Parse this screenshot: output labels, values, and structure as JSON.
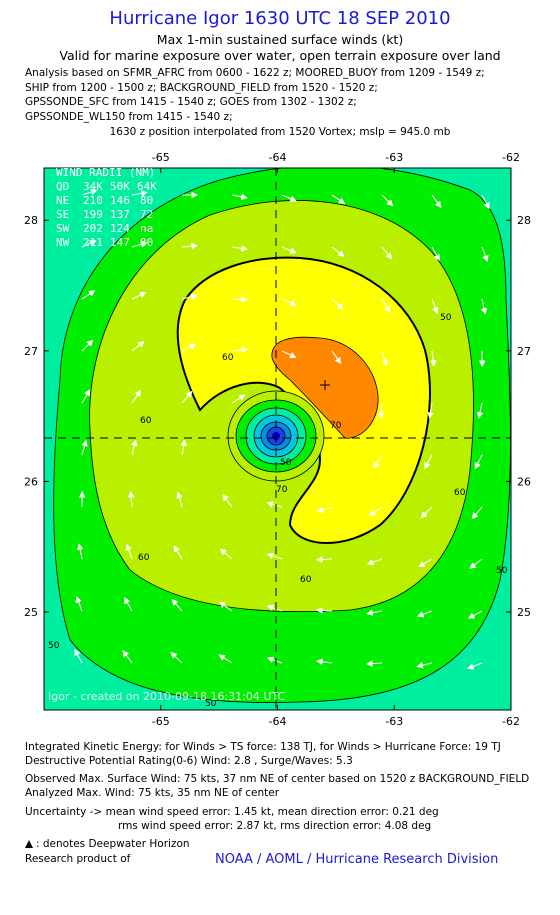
{
  "title": "Hurricane Igor 1630 UTC 18 SEP 2010",
  "subtitle": "Max 1-min sustained surface winds (kt)",
  "validity": "Valid for marine exposure over water, open terrain exposure over land",
  "analysis_lines": [
    "Analysis based on SFMR_AFRC from 0600 - 1622 z; MOORED_BUOY from 1209 - 1549 z;",
    "SHIP from 1200 - 1500 z; BACKGROUND_FIELD from 1520 - 1520 z;",
    "GPSSONDE_SFC from 1415 - 1540 z; GOES from 1302 - 1302 z;",
    "GPSSONDE_WL150 from 1415 - 1540 z;"
  ],
  "position_note": "1630 z position interpolated from 1520 Vortex; mslp = 945.0 mb",
  "map": {
    "lon_range": [
      -66.0,
      -62.0
    ],
    "lat_range": [
      24.25,
      28.4
    ],
    "lon_ticks": [
      "-65",
      "-64",
      "-63",
      "-62"
    ],
    "lat_ticks": [
      "28",
      "27",
      "26",
      "25"
    ],
    "center": {
      "lon": -63.95,
      "lat": 26.3
    },
    "max_wind_marker": {
      "lon": -63.47,
      "lat": 26.7
    },
    "contour_labels": [
      "50",
      "60",
      "60",
      "60",
      "60",
      "70",
      "50",
      "50",
      "60",
      "50",
      "70",
      "50"
    ],
    "colors": {
      "kt40": "#00eea0",
      "kt50": "#00ee00",
      "kt60": "#b8f000",
      "kt64": "#ffff00",
      "kt70": "#ff8800",
      "core_blue": "#0000cc"
    }
  },
  "wind_radii": {
    "title": "WIND RADII (NM)",
    "header": [
      "QD",
      "34K",
      "50K",
      "64K"
    ],
    "rows": [
      [
        "NE",
        "210",
        "146",
        "80"
      ],
      [
        "SE",
        "199",
        "137",
        "72"
      ],
      [
        "SW",
        "202",
        "124",
        "na"
      ],
      [
        "NW",
        "211",
        "147",
        "80"
      ]
    ]
  },
  "watermark": "Igor - created on 2010-09-18 16:31:04 UTC",
  "footer": {
    "ike": "Integrated Kinetic Energy:  for Winds > TS force: 138 TJ,  for Winds > Hurricane Force: 19 TJ",
    "dpr": "Destructive Potential Rating(0-6)   Wind: 2.8 , Surge/Waves: 5.3",
    "observed": "Observed Max. Surface Wind: 75 kts, 37 nm NE of center based on 1520 z BACKGROUND_FIELD",
    "analyzed": "Analyzed Max. Wind: 75 kts, 35 nm NE of center",
    "uncertainty1": "Uncertainty -> mean wind speed error: 1.45 kt,   mean direction error: 0.21 deg",
    "uncertainty2": "rms wind speed error: 2.87 kt,   rms direction error: 4.08 deg",
    "deepwater": ": denotes Deepwater Horizon",
    "research": "Research product of",
    "noaa": "NOAA / AOML / Hurricane Research Division"
  }
}
